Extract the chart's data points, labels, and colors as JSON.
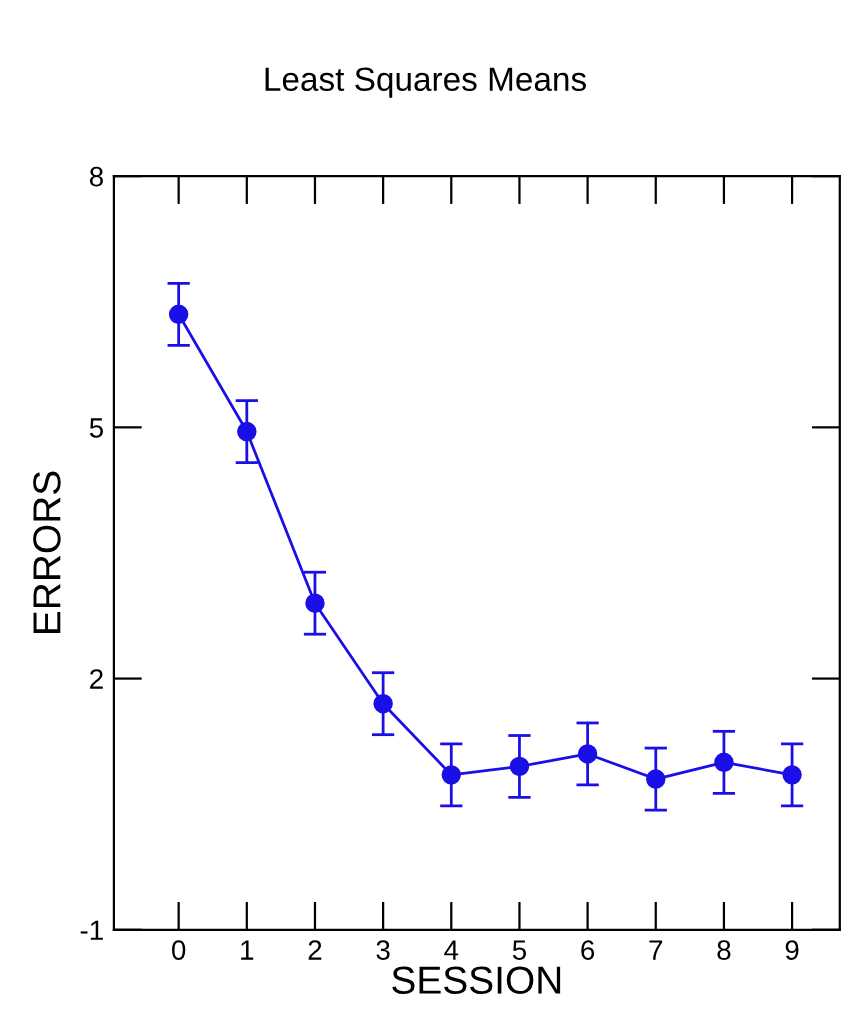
{
  "chart_data": {
    "type": "line",
    "title": "Least Squares Means",
    "xlabel": "SESSION",
    "ylabel": "ERRORS",
    "x": [
      0,
      1,
      2,
      3,
      4,
      5,
      6,
      7,
      8,
      9
    ],
    "series": [
      {
        "color": "#1a0fe6",
        "values": [
          6.35,
          4.95,
          2.9,
          1.7,
          0.85,
          0.95,
          1.1,
          0.8,
          1.0,
          0.85
        ],
        "errors": [
          0.37,
          0.37,
          0.37,
          0.37,
          0.37,
          0.37,
          0.37,
          0.37,
          0.37,
          0.37
        ]
      }
    ],
    "xlim": [
      -0.95,
      9.7
    ],
    "xticks": [
      0,
      1,
      2,
      3,
      4,
      5,
      6,
      7,
      8,
      9
    ],
    "ylim": [
      -1,
      8
    ],
    "yticks": [
      -1,
      2,
      5,
      8
    ],
    "marker": "circle",
    "line_style": "solid",
    "grid": false,
    "legend": false
  }
}
